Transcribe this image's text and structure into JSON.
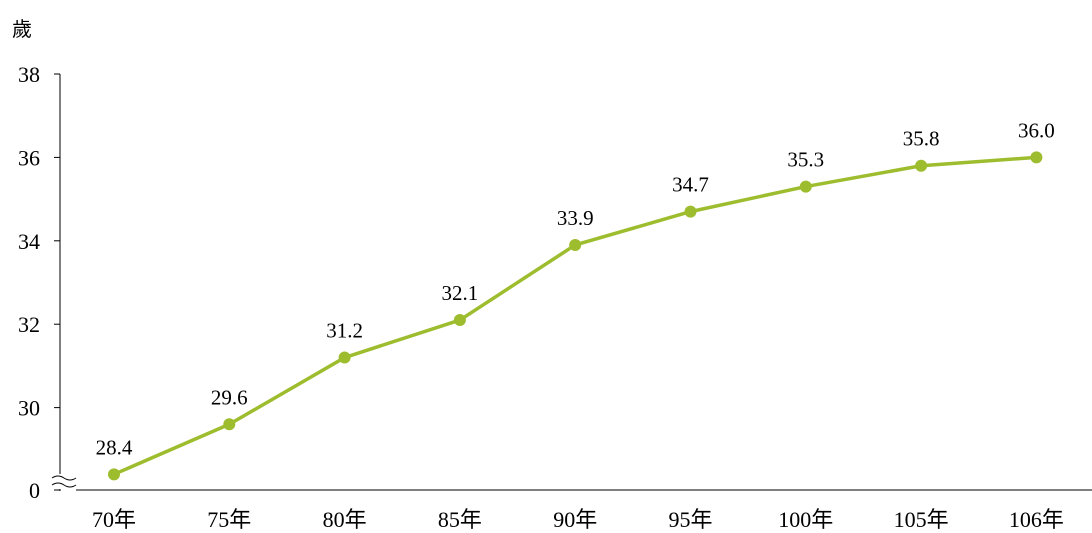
{
  "chart_data": {
    "type": "line",
    "title": "",
    "xlabel": "",
    "ylabel": "歲",
    "categories": [
      "70年",
      "75年",
      "80年",
      "85年",
      "90年",
      "95年",
      "100年",
      "105年",
      "106年"
    ],
    "series": [
      {
        "values": [
          28.4,
          29.6,
          31.2,
          32.1,
          33.9,
          34.7,
          35.3,
          35.8,
          36.0
        ],
        "color": "#9dbd2e"
      }
    ],
    "data_labels": [
      "28.4",
      "29.6",
      "31.2",
      "32.1",
      "33.9",
      "34.7",
      "35.3",
      "35.8",
      "36.0"
    ],
    "yticks": [
      0,
      30,
      32,
      34,
      36,
      38
    ],
    "ytick_labels": [
      "0",
      "30",
      "32",
      "34",
      "36",
      "38"
    ],
    "ylim": [
      28,
      38
    ],
    "axis_break": true,
    "grid": false,
    "legend": "none"
  }
}
